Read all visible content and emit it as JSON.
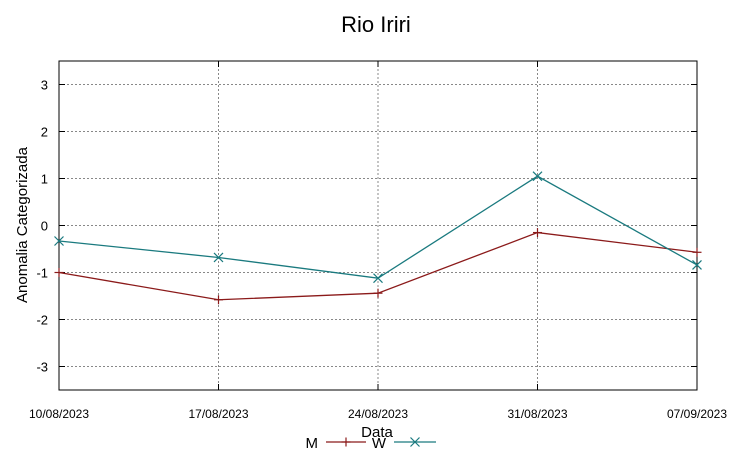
{
  "chart_data": {
    "type": "line",
    "title": "Rio Iriri",
    "xlabel": "Data",
    "ylabel": "Anomalia Categorizada",
    "x": [
      "10/08/2023",
      "17/08/2023",
      "24/08/2023",
      "31/08/2023",
      "07/09/2023"
    ],
    "yticks": [
      "3",
      "2",
      "1",
      "0",
      "-1",
      "-2",
      "-3"
    ],
    "ylim": [
      -3.5,
      3.5
    ],
    "grid": true,
    "legend_position": "bottom",
    "series": [
      {
        "name": "M",
        "values": [
          -1.0,
          -1.58,
          -1.44,
          -0.15,
          -0.57
        ],
        "color": "#8b1a1a",
        "marker": "plus"
      },
      {
        "name": "W",
        "values": [
          -0.33,
          -0.68,
          -1.12,
          1.05,
          -0.84
        ],
        "color": "#1a7a7f",
        "marker": "cross"
      }
    ]
  }
}
